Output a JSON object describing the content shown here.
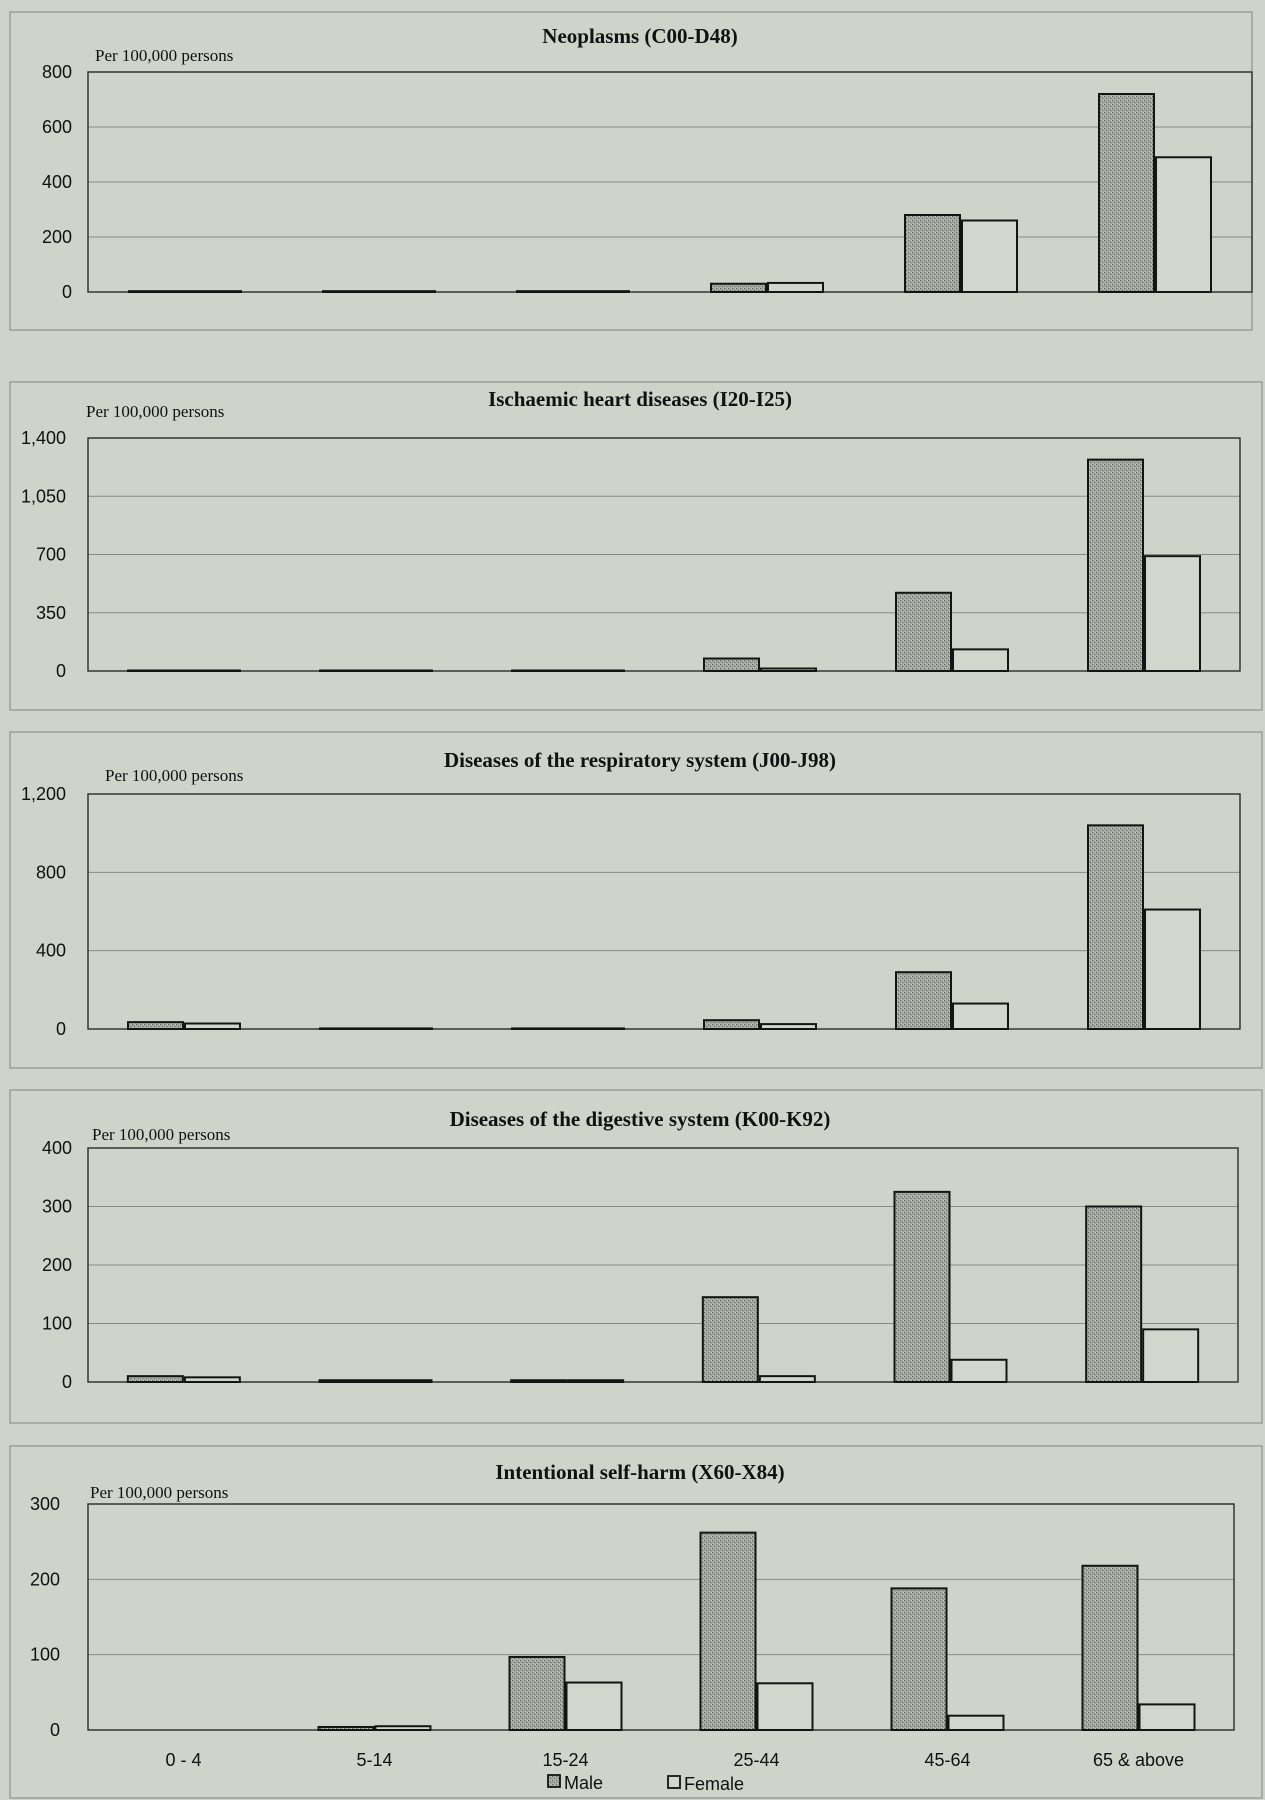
{
  "legend": [
    {
      "label": "Male",
      "swatch": "male"
    },
    {
      "label": "Female",
      "swatch": "female"
    }
  ],
  "colors": {
    "male": "#a3a59f",
    "female": "#d2d6cd",
    "background": "#cfd3ca"
  },
  "chart_data": [
    {
      "type": "bar",
      "title": "Neoplasms (C00-D48)",
      "ylabel": "Per 100,000 persons",
      "categories": [
        "0 - 4",
        "5-14",
        "15-24",
        "25-44",
        "45-64",
        "65 & above"
      ],
      "yticks": [
        "0",
        "200",
        "400",
        "600",
        "800"
      ],
      "ylim": [
        0,
        800
      ],
      "series": [
        {
          "name": "Male",
          "values": [
            3,
            3,
            3,
            30,
            280,
            720
          ]
        },
        {
          "name": "Female",
          "values": [
            3,
            3,
            3,
            33,
            260,
            490
          ]
        }
      ]
    },
    {
      "type": "bar",
      "title": "Ischaemic heart diseases (I20-I25)",
      "ylabel": "Per 100,000 persons",
      "categories": [
        "0 - 4",
        "5-14",
        "15-24",
        "25-44",
        "45-64",
        "65 & above"
      ],
      "yticks": [
        "0",
        "350",
        "700",
        "1,050",
        "1,400"
      ],
      "ylim": [
        0,
        1400
      ],
      "series": [
        {
          "name": "Male",
          "values": [
            3,
            3,
            3,
            75,
            470,
            1270
          ]
        },
        {
          "name": "Female",
          "values": [
            3,
            3,
            3,
            15,
            130,
            690
          ]
        }
      ]
    },
    {
      "type": "bar",
      "title": "Diseases of the respiratory system (J00-J98)",
      "ylabel": "Per 100,000 persons",
      "categories": [
        "0 - 4",
        "5-14",
        "15-24",
        "25-44",
        "45-64",
        "65 & above"
      ],
      "yticks": [
        "0",
        "400",
        "800",
        "1,200"
      ],
      "ylim": [
        0,
        1200
      ],
      "series": [
        {
          "name": "Male",
          "values": [
            35,
            3,
            3,
            45,
            290,
            1040
          ]
        },
        {
          "name": "Female",
          "values": [
            28,
            3,
            3,
            25,
            130,
            610
          ]
        }
      ]
    },
    {
      "type": "bar",
      "title": "Diseases of the digestive system (K00-K92)",
      "ylabel": "Per 100,000 persons",
      "categories": [
        "0 - 4",
        "5-14",
        "15-24",
        "25-44",
        "45-64",
        "65 & above"
      ],
      "yticks": [
        "0",
        "100",
        "200",
        "300",
        "400"
      ],
      "ylim": [
        0,
        400
      ],
      "series": [
        {
          "name": "Male",
          "values": [
            10,
            3,
            3,
            145,
            325,
            300
          ]
        },
        {
          "name": "Female",
          "values": [
            8,
            3,
            3,
            10,
            38,
            90
          ]
        }
      ]
    },
    {
      "type": "bar",
      "title": "Intentional self-harm (X60-X84)",
      "ylabel": "Per 100,000 persons",
      "categories": [
        "0 - 4",
        "5-14",
        "15-24",
        "25-44",
        "45-64",
        "65 & above"
      ],
      "yticks": [
        "0",
        "100",
        "200",
        "300"
      ],
      "ylim": [
        0,
        300
      ],
      "series": [
        {
          "name": "Male",
          "values": [
            0,
            4,
            97,
            262,
            188,
            218
          ]
        },
        {
          "name": "Female",
          "values": [
            0,
            5,
            63,
            62,
            19,
            34
          ]
        }
      ]
    }
  ]
}
